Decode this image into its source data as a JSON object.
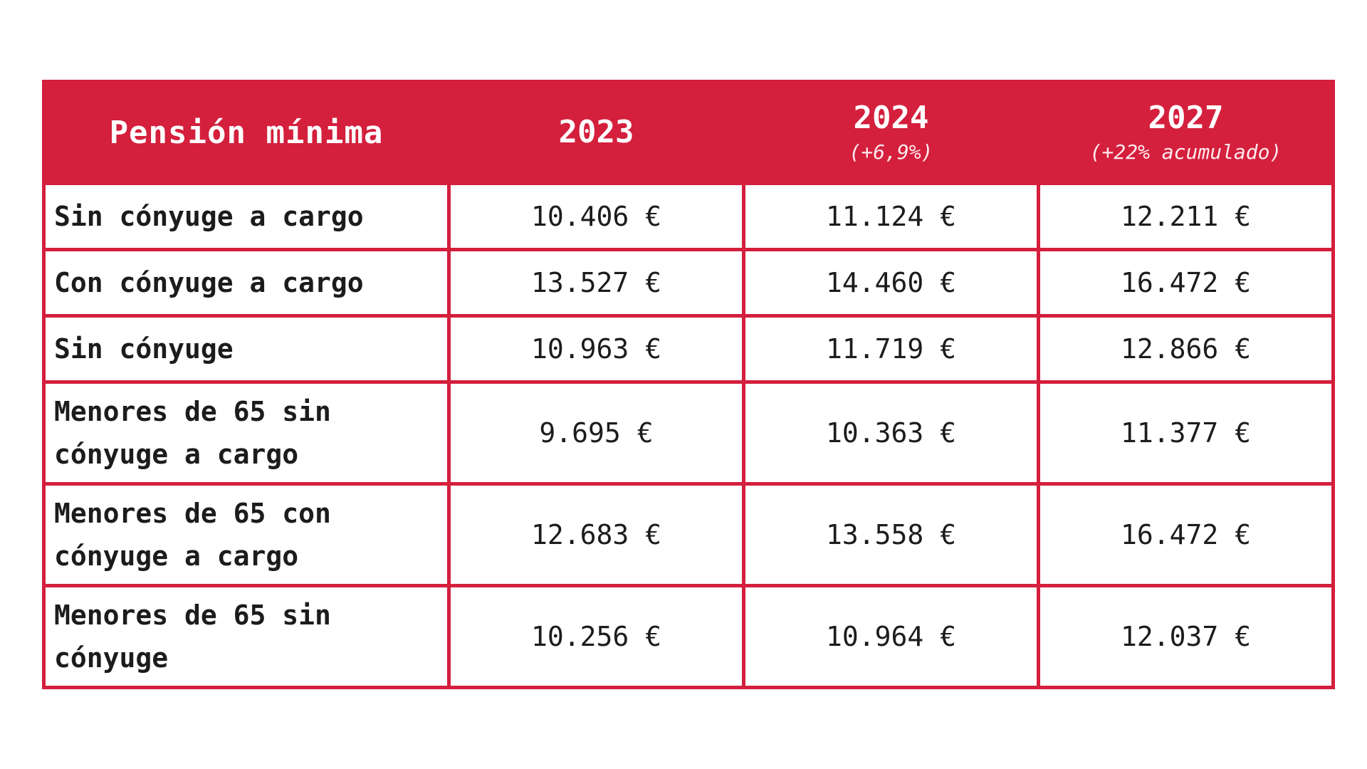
{
  "table": {
    "header": {
      "label": "Pensión mínima",
      "columns": [
        {
          "year": "2023",
          "note": ""
        },
        {
          "year": "2024",
          "note": "(+6,9%)"
        },
        {
          "year": "2027",
          "note": "(+22% acumulado)"
        }
      ]
    },
    "rows": [
      {
        "label": "Sin cónyuge a cargo",
        "values": [
          "10.406 €",
          "11.124 €",
          "12.211 €"
        ]
      },
      {
        "label": "Con cónyuge a cargo",
        "values": [
          "13.527 €",
          "14.460 €",
          "16.472 €"
        ]
      },
      {
        "label": "Sin cónyuge",
        "values": [
          "10.963 €",
          "11.719 €",
          "12.866 €"
        ]
      },
      {
        "label": "Menores de 65 sin cónyuge a cargo",
        "values": [
          "9.695 €",
          "10.363 €",
          "11.377 €"
        ]
      },
      {
        "label": "Menores de 65 con cónyuge a cargo",
        "values": [
          "12.683 €",
          "13.558 €",
          "16.472 €"
        ]
      },
      {
        "label": "Menores de 65 sin cónyuge",
        "values": [
          "10.256 €",
          "10.964 €",
          "12.037 €"
        ]
      }
    ]
  },
  "colors": {
    "accent": "#d41f3d",
    "background": "#ffffff",
    "text": "#1c1c1c"
  }
}
